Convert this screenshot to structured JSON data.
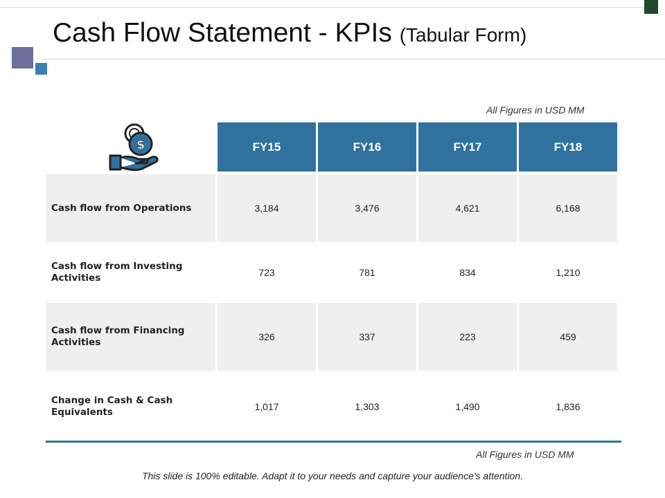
{
  "slide": {
    "title": "Cash Flow Statement - KPIs",
    "subtitle": "(Tabular Form)",
    "note_top": "All Figures in USD MM",
    "note_bottom": "All Figures in USD MM",
    "footer": "This slide is 100% editable. Adapt it to your needs and capture your audience's attention."
  },
  "colors": {
    "header": "#31719f",
    "shade": "#efefef",
    "accent_dark": "#1f4a2c"
  },
  "icon": "hand-holding-dollar-icon",
  "table": {
    "columns": [
      "FY15",
      "FY16",
      "FY17",
      "FY18"
    ],
    "rows": [
      {
        "label": "Cash flow from Operations",
        "values": [
          "3,184",
          "3,476",
          "4,621",
          "6,168"
        ]
      },
      {
        "label": "Cash flow from Investing Activities",
        "values": [
          "723",
          "781",
          "834",
          "1,210"
        ]
      },
      {
        "label": "Cash flow from Financing Activities",
        "values": [
          "326",
          "337",
          "223",
          "459"
        ]
      },
      {
        "label": "Change in Cash & Cash Equivalents",
        "values": [
          "1,017",
          "1,303",
          "1,490",
          "1,836"
        ]
      }
    ]
  }
}
